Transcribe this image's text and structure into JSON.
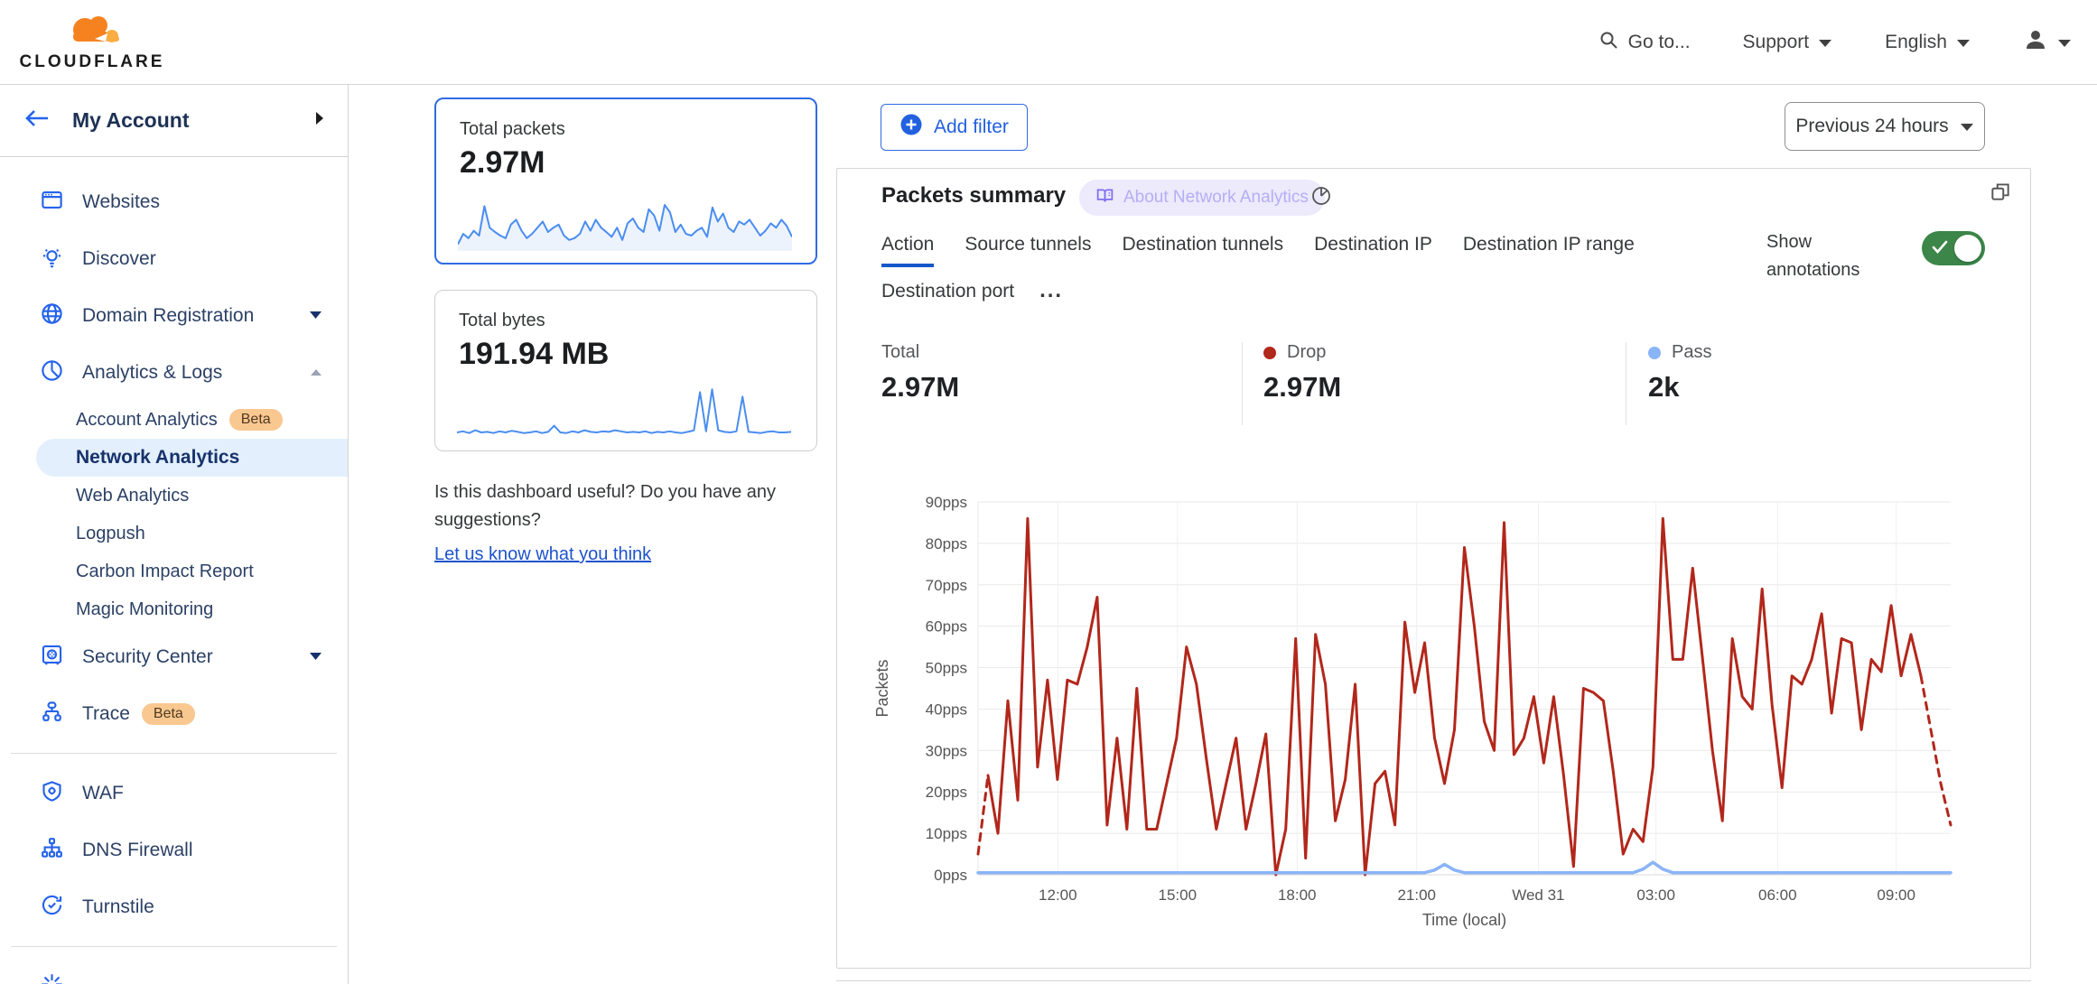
{
  "brand": {
    "name": "CLOUDFLARE"
  },
  "header": {
    "goto_label": "Go to...",
    "support_label": "Support",
    "language_label": "English"
  },
  "sidebar": {
    "title": "My Account",
    "beta_label": "Beta",
    "items": [
      {
        "label": "Websites",
        "icon": "browser-icon"
      },
      {
        "label": "Discover",
        "icon": "lightbulb-icon"
      },
      {
        "label": "Domain Registration",
        "icon": "globe-icon",
        "caret": "down"
      },
      {
        "label": "Analytics & Logs",
        "icon": "pie-chart-icon",
        "caret": "up",
        "expanded": true
      },
      {
        "label": "Security Center",
        "icon": "safe-icon",
        "caret": "down"
      },
      {
        "label": "Trace",
        "icon": "trace-icon",
        "beta": "Beta"
      },
      {
        "label": "WAF",
        "icon": "shield-gear-icon"
      },
      {
        "label": "DNS Firewall",
        "icon": "sitemap-icon"
      },
      {
        "label": "Turnstile",
        "icon": "refresh-check-icon"
      }
    ],
    "analytics_subitems": [
      {
        "label": "Account Analytics",
        "beta": "Beta"
      },
      {
        "label": "Network Analytics",
        "selected": true
      },
      {
        "label": "Web Analytics"
      },
      {
        "label": "Logpush"
      },
      {
        "label": "Carbon Impact Report"
      },
      {
        "label": "Magic Monitoring"
      }
    ]
  },
  "summary_cards": [
    {
      "title": "Total packets",
      "value": "2.97M",
      "selected": true
    },
    {
      "title": "Total bytes",
      "value": "191.94 MB",
      "selected": false
    }
  ],
  "feedback": {
    "question": "Is this dashboard useful? Do you have any suggestions?",
    "link": "Let us know what you think"
  },
  "filter_bar": {
    "add_filter_label": "Add filter",
    "time_range_label": "Previous 24 hours"
  },
  "panel": {
    "title": "Packets summary",
    "about_badge": "About Network Analytics",
    "tabs": [
      "Action",
      "Source tunnels",
      "Destination tunnels",
      "Destination IP",
      "Destination IP range",
      "Destination port"
    ],
    "active_tab": "Action",
    "more_tabs_label": "...",
    "show_annotations_label": "Show annotations",
    "stats": [
      {
        "label": "Total",
        "value": "2.97M",
        "dot_color": null
      },
      {
        "label": "Drop",
        "value": "2.97M",
        "dot_color": "#b2271b"
      },
      {
        "label": "Pass",
        "value": "2k",
        "dot_color": "#8ab4f8"
      }
    ]
  },
  "colors": {
    "accent_blue": "#2f6be3",
    "icon_blue": "#2563eb",
    "link_blue": "#1d53cc",
    "tab_underline": "#1458c8",
    "toggle_green": "#3b8648",
    "drop_red": "#b2271b",
    "pass_blue": "#8ab4f8",
    "spark_blue": "#4a8df0",
    "beta_bg": "#f9c790",
    "badge_bg": "#eceafb",
    "badge_text": "#b6adf6",
    "cloudflare_orange": "#f6821f",
    "cloudflare_orange_light": "#fbad41"
  },
  "chart_data": [
    {
      "name": "packets-summary-timeseries",
      "type": "line",
      "title": "Packets summary",
      "xlabel": "Time (local)",
      "ylabel": "Packets",
      "ylim": [
        0,
        90
      ],
      "grid": true,
      "legend_position": "none",
      "y_unit": "pps",
      "y_tick_values": [
        0,
        10,
        20,
        30,
        40,
        50,
        60,
        70,
        80,
        90
      ],
      "y_tick_labels": [
        "0pps",
        "10pps",
        "20pps",
        "30pps",
        "40pps",
        "50pps",
        "60pps",
        "70pps",
        "80pps",
        "90pps"
      ],
      "x_ticks": [
        {
          "label": "12:00",
          "pos": 0.082
        },
        {
          "label": "15:00",
          "pos": 0.205
        },
        {
          "label": "18:00",
          "pos": 0.328
        },
        {
          "label": "21:00",
          "pos": 0.451
        },
        {
          "label": "Wed 31",
          "pos": 0.576
        },
        {
          "label": "03:00",
          "pos": 0.697
        },
        {
          "label": "06:00",
          "pos": 0.822
        },
        {
          "label": "09:00",
          "pos": 0.944
        }
      ],
      "series": [
        {
          "name": "Drop",
          "color": "#b2271b",
          "dashed_head_segments": 1,
          "dashed_tail_segments": 3,
          "values": [
            5,
            24,
            10,
            42,
            18,
            86,
            26,
            47,
            23,
            47,
            46,
            55,
            67,
            12,
            33,
            11,
            45,
            11,
            11,
            22,
            33,
            55,
            46,
            28,
            11,
            22,
            33,
            11,
            22,
            34,
            0,
            11,
            57,
            4,
            58,
            46,
            13,
            23,
            46,
            0,
            22,
            25,
            12,
            61,
            44,
            56,
            33,
            22,
            35,
            79,
            60,
            37,
            30,
            85,
            29,
            33,
            43,
            27,
            43,
            24,
            2,
            45,
            44,
            42,
            25,
            5,
            11,
            8,
            26,
            86,
            52,
            52,
            74,
            52,
            30,
            13,
            57,
            43,
            40,
            69,
            41,
            21,
            48,
            46,
            52,
            63,
            39,
            57,
            56,
            35,
            52,
            49,
            65,
            48,
            58,
            48,
            35,
            22,
            12
          ]
        },
        {
          "name": "Pass",
          "color": "#8ab4f8",
          "baseline": 0.5,
          "bumps": [
            {
              "i": 47,
              "v": 2.5
            },
            {
              "i": 68,
              "v": 3
            }
          ]
        }
      ]
    },
    {
      "name": "total-packets-sparkline",
      "type": "area",
      "color": "#4a8df0",
      "values": [
        8,
        25,
        18,
        30,
        22,
        70,
        35,
        28,
        22,
        18,
        40,
        48,
        30,
        18,
        25,
        35,
        45,
        28,
        35,
        40,
        22,
        15,
        18,
        25,
        45,
        30,
        48,
        35,
        28,
        20,
        35,
        15,
        42,
        50,
        35,
        28,
        65,
        55,
        30,
        72,
        60,
        28,
        40,
        25,
        22,
        30,
        35,
        20,
        68,
        45,
        58,
        35,
        28,
        45,
        40,
        48,
        35,
        22,
        30,
        42,
        35,
        48,
        38,
        20
      ]
    },
    {
      "name": "total-bytes-sparkline",
      "type": "line",
      "color": "#4a8df0",
      "values": [
        8,
        10,
        7,
        12,
        8,
        9,
        7,
        10,
        8,
        11,
        9,
        7,
        8,
        10,
        7,
        9,
        20,
        8,
        7,
        10,
        8,
        12,
        9,
        8,
        10,
        9,
        12,
        10,
        8,
        9,
        8,
        10,
        7,
        9,
        8,
        10,
        8,
        7,
        9,
        12,
        80,
        10,
        85,
        12,
        9,
        8,
        10,
        72,
        9,
        8,
        7,
        9,
        10,
        8,
        8,
        9
      ]
    }
  ]
}
